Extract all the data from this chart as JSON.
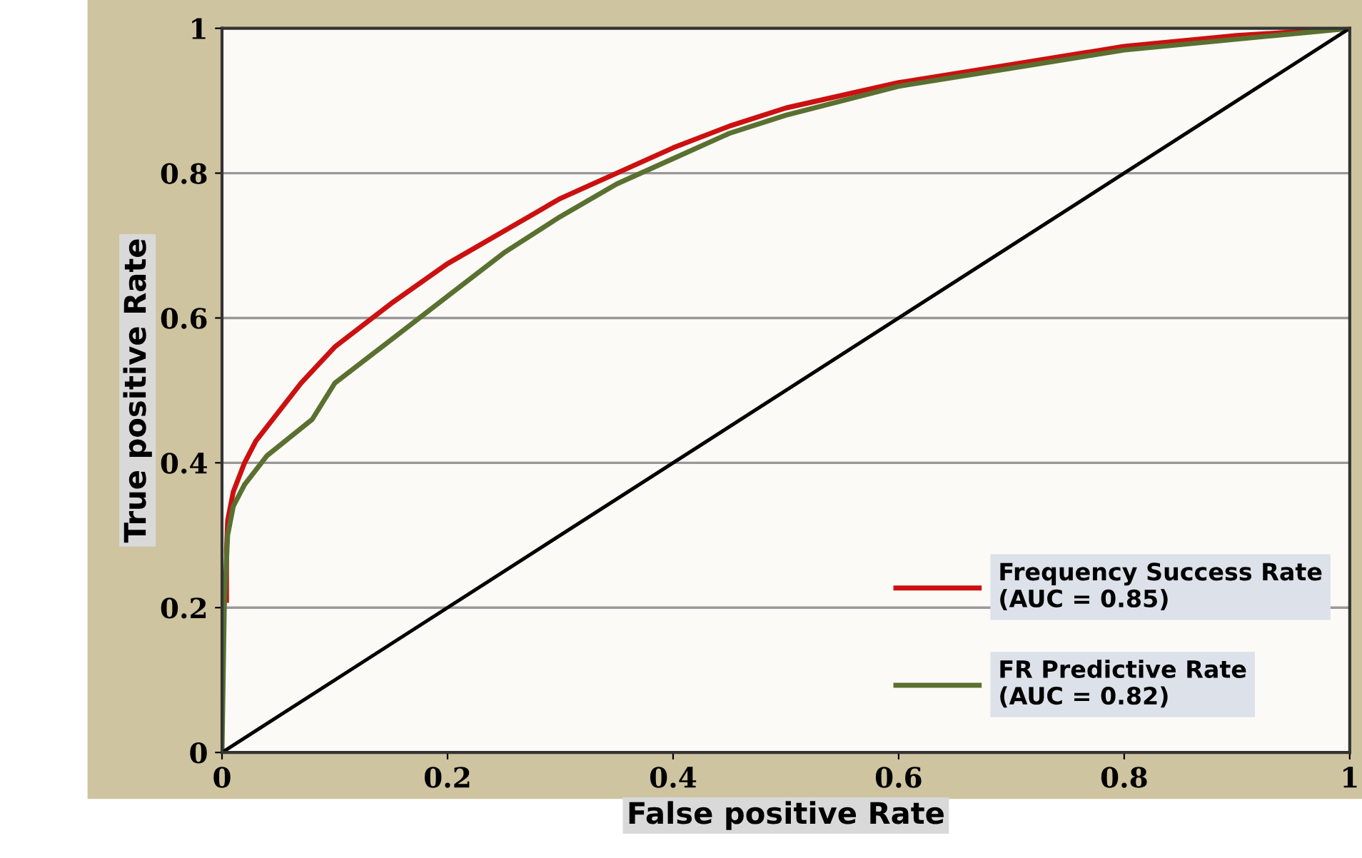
{
  "chart_data": {
    "type": "line",
    "xlabel": "False positive Rate",
    "ylabel": "True positive Rate",
    "xlim": [
      0,
      1
    ],
    "ylim": [
      0,
      1
    ],
    "xticks": [
      0,
      0.2,
      0.4,
      0.6,
      0.8,
      1
    ],
    "yticks": [
      0,
      0.2,
      0.4,
      0.6,
      0.8,
      1
    ],
    "grid": "y",
    "legend": "bottom right",
    "marker": "none",
    "line_style": "solid",
    "series": [
      {
        "name": "Frequency Success Rate\n(AUC = 0.85)",
        "color": "#cc1010",
        "x": [
          0.004,
          0.004,
          0.005,
          0.01,
          0.02,
          0.03,
          0.05,
          0.07,
          0.1,
          0.15,
          0.2,
          0.25,
          0.3,
          0.35,
          0.4,
          0.45,
          0.5,
          0.6,
          0.7,
          0.8,
          0.9,
          1
        ],
        "values": [
          0.21,
          0.28,
          0.32,
          0.36,
          0.4,
          0.43,
          0.47,
          0.51,
          0.56,
          0.62,
          0.675,
          0.72,
          0.765,
          0.8,
          0.835,
          0.865,
          0.89,
          0.925,
          0.95,
          0.975,
          0.99,
          1
        ]
      },
      {
        "name": "FR Predictive Rate\n(AUC = 0.82)",
        "color": "#5a7030",
        "x": [
          0,
          0.002,
          0.005,
          0.01,
          0.02,
          0.04,
          0.08,
          0.1,
          0.15,
          0.2,
          0.25,
          0.3,
          0.35,
          0.4,
          0.45,
          0.5,
          0.6,
          0.7,
          0.8,
          0.9,
          1
        ],
        "values": [
          0,
          0.2,
          0.3,
          0.34,
          0.37,
          0.41,
          0.46,
          0.51,
          0.57,
          0.63,
          0.69,
          0.74,
          0.785,
          0.82,
          0.855,
          0.88,
          0.92,
          0.945,
          0.97,
          0.985,
          1
        ]
      },
      {
        "color": "#000000",
        "x": [
          0,
          1
        ],
        "values": [
          0,
          1
        ]
      }
    ]
  }
}
